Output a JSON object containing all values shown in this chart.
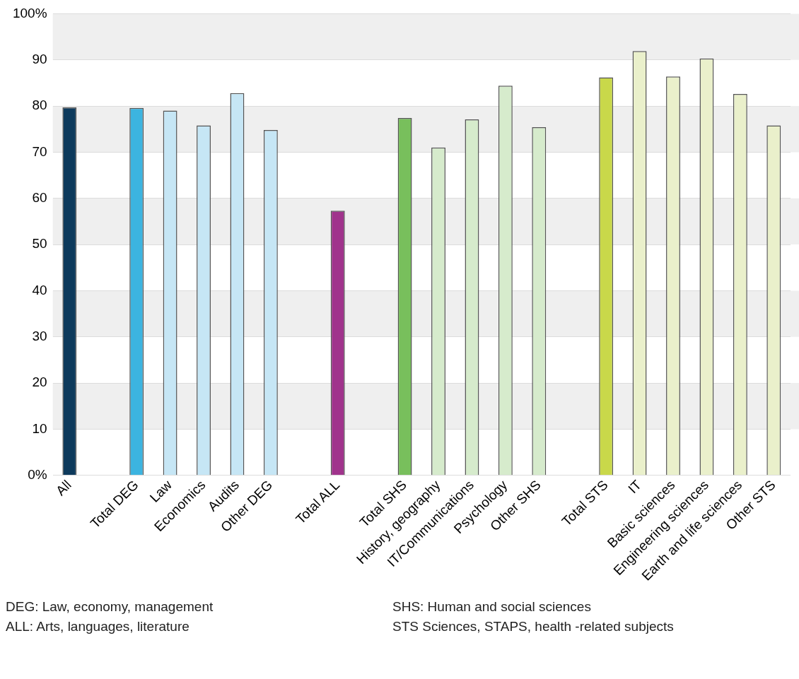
{
  "chart_data": {
    "type": "bar",
    "categories": [
      "All",
      null,
      "Total DEG",
      "Law",
      "Economics",
      "Audits",
      "Other DEG",
      null,
      "Total ALL",
      null,
      "Total SHS",
      "History, geography",
      "IT/Communications",
      "Psychology",
      "Other SHS",
      null,
      "Total STS",
      "IT",
      "Basic sciences",
      "Engineering sciences",
      "Earth and life sciences",
      "Other STS"
    ],
    "values": [
      79.7,
      null,
      79.6,
      79,
      75.8,
      82.8,
      74.8,
      null,
      57.3,
      null,
      77.4,
      71,
      77.1,
      84.4,
      75.4,
      null,
      86.2,
      91.9,
      86.4,
      90.3,
      82.6,
      75.8
    ],
    "colors": [
      "#0d3a5c",
      "#ffffff",
      "#3cb4e0",
      "#c6e6f5",
      "#c6e6f5",
      "#c6e6f5",
      "#c6e6f5",
      "#ffffff",
      "#a0338c",
      "#ffffff",
      "#78bf5c",
      "#d6ebcc",
      "#d6ebcc",
      "#d6ebcc",
      "#d6ebcc",
      "#ffffff",
      "#c9d84a",
      "#eaf0cb",
      "#eaf0cb",
      "#eaf0cb",
      "#eaf0cb",
      "#eaf0cb"
    ],
    "ylim": [
      0,
      100
    ],
    "yticks": [
      {
        "value": 0,
        "label": "0%"
      },
      10,
      20,
      30,
      40,
      50,
      60,
      70,
      80,
      90,
      {
        "value": 100,
        "label": "100%"
      }
    ],
    "grid": "y",
    "legend": false,
    "annotations": [
      "DEG: Law, economy, management",
      "ALL: Arts, languages, literature",
      "SHS: Human and social sciences",
      "STS Sciences, STAPS, health -related subjects"
    ]
  }
}
